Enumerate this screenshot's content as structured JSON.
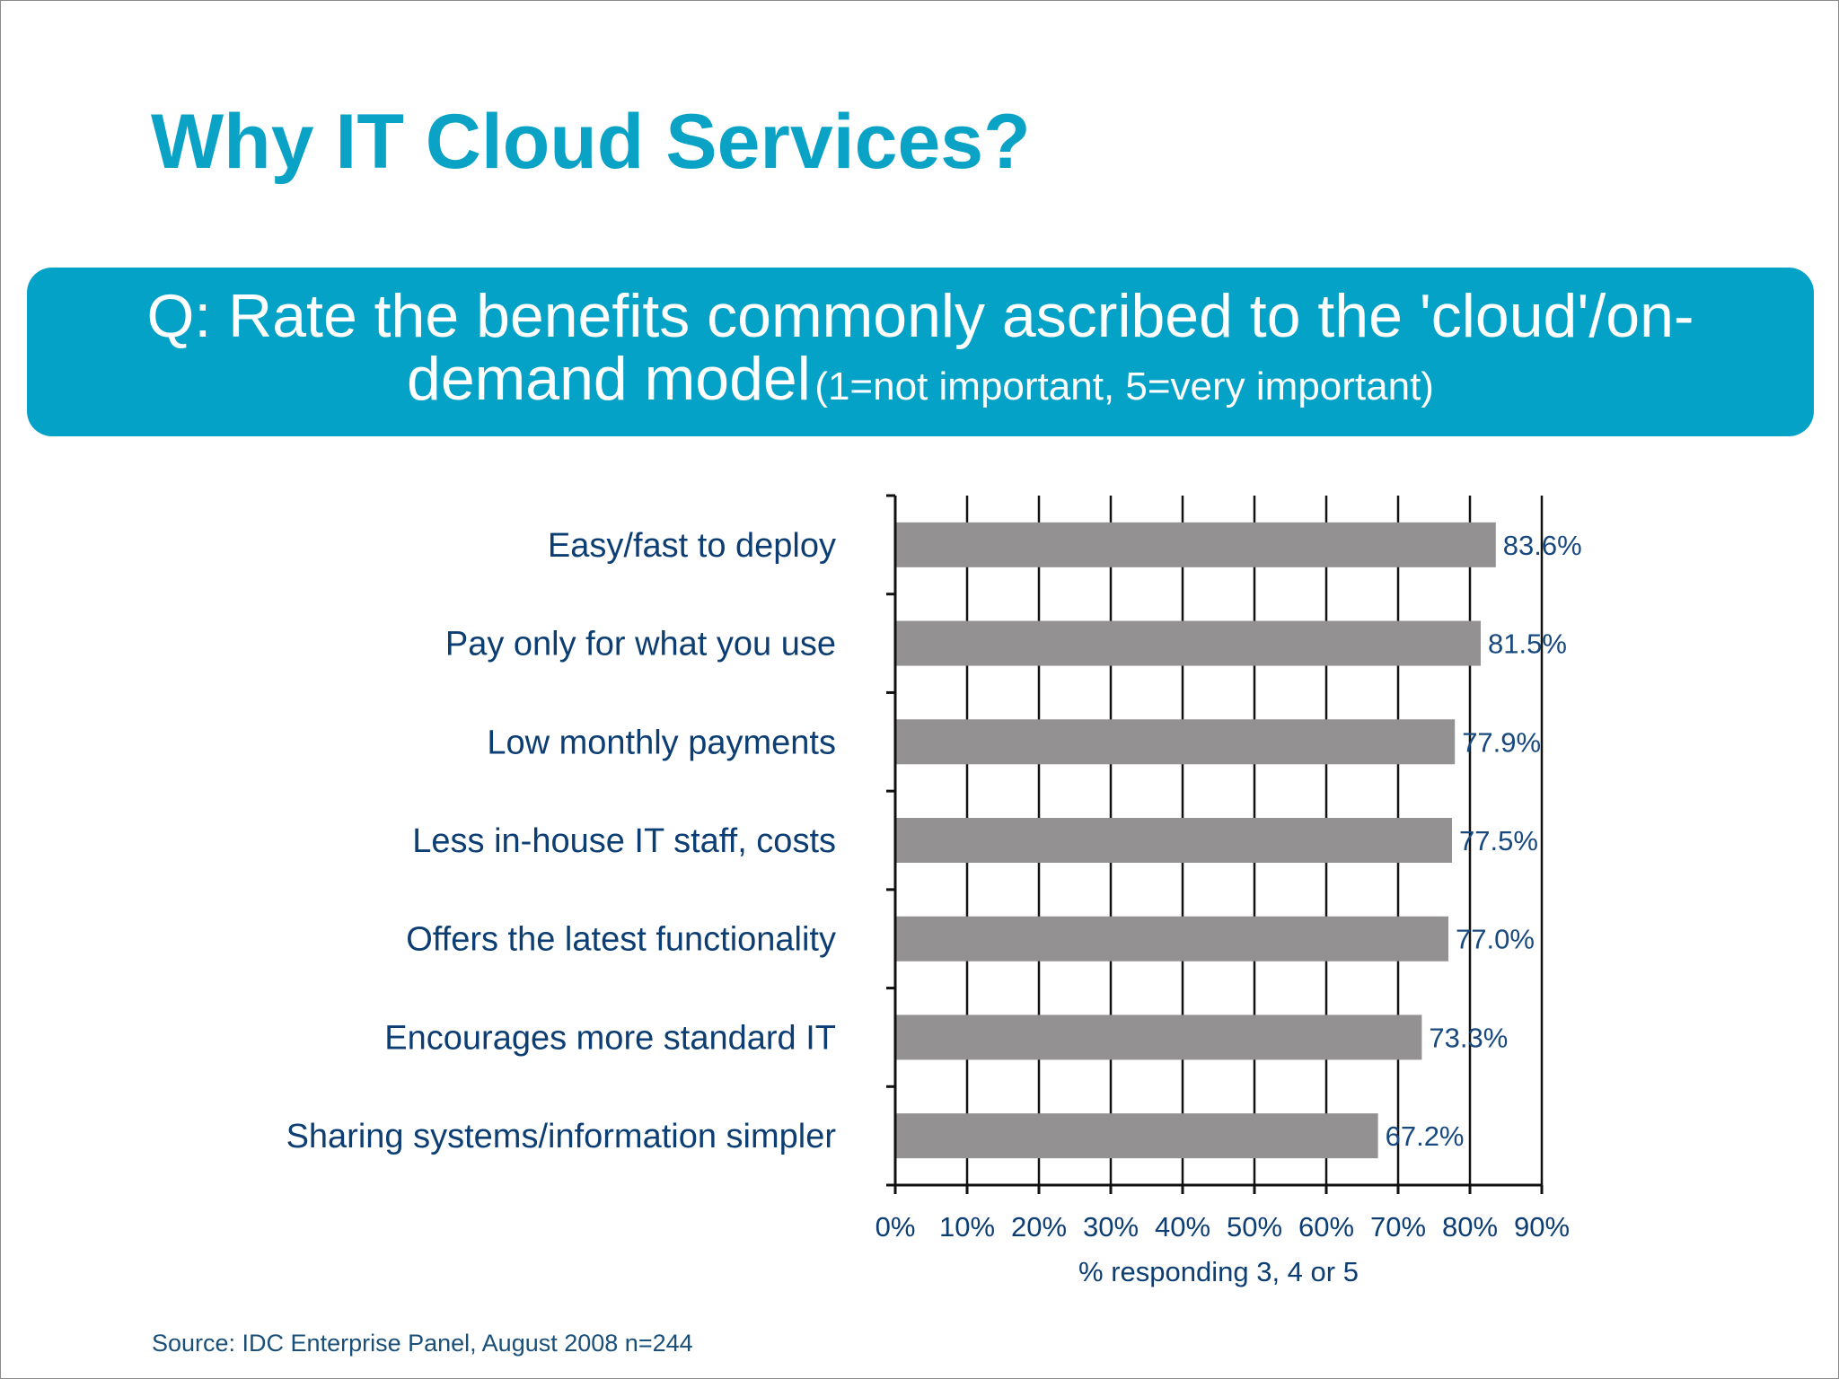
{
  "slide": {
    "title": "Why IT Cloud Services?",
    "question_main_1": "Q: Rate the benefits commonly ascribed to the 'cloud'/on-",
    "question_main_2": "demand model",
    "question_scale": "(1=not important, 5=very important)",
    "source": "Source: IDC Enterprise Panel, August 2008  n=244",
    "colors": {
      "title": "#0aa3c6",
      "banner": "#05a2c8",
      "bar": "#939191",
      "text": "#0d3e73"
    }
  },
  "chart_data": {
    "type": "bar",
    "orientation": "horizontal",
    "categories": [
      "Easy/fast to deploy",
      "Pay only for what you use",
      "Low monthly payments",
      "Less in-house IT staff, costs",
      "Offers the latest functionality",
      "Encourages more standard IT",
      "Sharing systems/information simpler"
    ],
    "values": [
      83.6,
      81.5,
      77.9,
      77.5,
      77.0,
      73.3,
      67.2
    ],
    "value_labels": [
      "83.6%",
      "81.5%",
      "77.9%",
      "77.5%",
      "77.0%",
      "73.3%",
      "67.2%"
    ],
    "xlim": [
      0,
      90
    ],
    "xticks": [
      0,
      10,
      20,
      30,
      40,
      50,
      60,
      70,
      80,
      90
    ],
    "xtick_labels": [
      "0%",
      "10%",
      "20%",
      "30%",
      "40%",
      "50%",
      "60%",
      "70%",
      "80%",
      "90%"
    ],
    "xlabel": "% responding 3, 4 or 5",
    "grid": "vertical",
    "legend": "none"
  }
}
